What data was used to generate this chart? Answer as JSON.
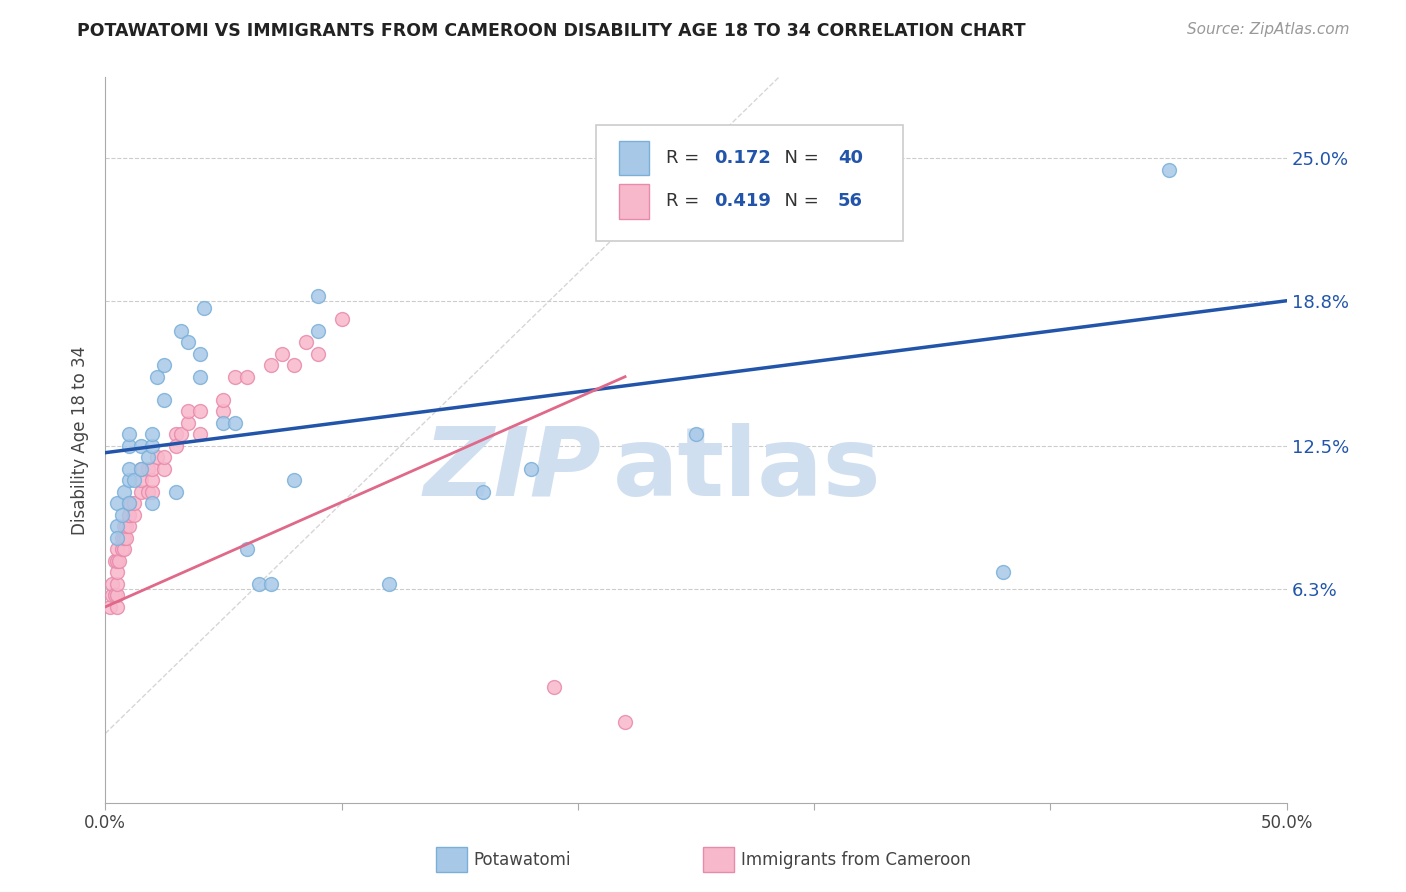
{
  "title": "POTAWATOMI VS IMMIGRANTS FROM CAMEROON DISABILITY AGE 18 TO 34 CORRELATION CHART",
  "source": "Source: ZipAtlas.com",
  "ylabel": "Disability Age 18 to 34",
  "xmin": 0.0,
  "xmax": 0.5,
  "ymin": -0.03,
  "ymax": 0.285,
  "yticks": [
    0.063,
    0.125,
    0.188,
    0.25
  ],
  "ytick_labels": [
    "6.3%",
    "12.5%",
    "18.8%",
    "25.0%"
  ],
  "xticks": [
    0.0,
    0.1,
    0.2,
    0.3,
    0.4,
    0.5
  ],
  "xtick_labels": [
    "0.0%",
    "",
    "",
    "",
    "",
    "50.0%"
  ],
  "blue_color": "#a8c8e8",
  "blue_edge": "#7ab0d8",
  "pink_color": "#f8b8cc",
  "pink_edge": "#e88aaa",
  "blue_line_color": "#2255aa",
  "pink_line_color": "#e06888",
  "watermark_color": "#d0dff0",
  "R_blue": 0.172,
  "N_blue": 40,
  "R_pink": 0.419,
  "N_pink": 56,
  "legend_label_blue": "Potawatomi",
  "legend_label_pink": "Immigrants from Cameroon",
  "blue_line_x0": 0.0,
  "blue_line_y0": 0.122,
  "blue_line_x1": 0.5,
  "blue_line_y1": 0.188,
  "pink_line_x0": 0.0,
  "pink_line_y0": 0.055,
  "pink_line_x1": 0.22,
  "pink_line_y1": 0.155,
  "blue_x": [
    0.005,
    0.005,
    0.005,
    0.007,
    0.008,
    0.01,
    0.01,
    0.01,
    0.01,
    0.01,
    0.012,
    0.015,
    0.015,
    0.018,
    0.02,
    0.02,
    0.02,
    0.022,
    0.025,
    0.025,
    0.03,
    0.032,
    0.035,
    0.04,
    0.04,
    0.042,
    0.05,
    0.055,
    0.06,
    0.065,
    0.07,
    0.08,
    0.09,
    0.09,
    0.12,
    0.16,
    0.18,
    0.25,
    0.38,
    0.45
  ],
  "blue_y": [
    0.09,
    0.1,
    0.085,
    0.095,
    0.105,
    0.1,
    0.11,
    0.115,
    0.125,
    0.13,
    0.11,
    0.115,
    0.125,
    0.12,
    0.1,
    0.125,
    0.13,
    0.155,
    0.145,
    0.16,
    0.105,
    0.175,
    0.17,
    0.155,
    0.165,
    0.185,
    0.135,
    0.135,
    0.08,
    0.065,
    0.065,
    0.11,
    0.175,
    0.19,
    0.065,
    0.105,
    0.115,
    0.13,
    0.07,
    0.245
  ],
  "pink_x": [
    0.002,
    0.003,
    0.003,
    0.004,
    0.004,
    0.005,
    0.005,
    0.005,
    0.005,
    0.005,
    0.005,
    0.006,
    0.007,
    0.007,
    0.008,
    0.008,
    0.008,
    0.009,
    0.009,
    0.01,
    0.01,
    0.01,
    0.01,
    0.01,
    0.012,
    0.012,
    0.015,
    0.015,
    0.015,
    0.018,
    0.018,
    0.02,
    0.02,
    0.02,
    0.022,
    0.025,
    0.025,
    0.03,
    0.03,
    0.032,
    0.035,
    0.035,
    0.04,
    0.04,
    0.05,
    0.05,
    0.055,
    0.06,
    0.07,
    0.075,
    0.08,
    0.085,
    0.09,
    0.1,
    0.19,
    0.22
  ],
  "pink_y": [
    0.055,
    0.06,
    0.065,
    0.06,
    0.075,
    0.055,
    0.06,
    0.065,
    0.07,
    0.075,
    0.08,
    0.075,
    0.08,
    0.085,
    0.08,
    0.085,
    0.09,
    0.085,
    0.09,
    0.09,
    0.095,
    0.1,
    0.095,
    0.1,
    0.095,
    0.1,
    0.105,
    0.11,
    0.115,
    0.105,
    0.115,
    0.105,
    0.11,
    0.115,
    0.12,
    0.115,
    0.12,
    0.13,
    0.125,
    0.13,
    0.135,
    0.14,
    0.13,
    0.14,
    0.14,
    0.145,
    0.155,
    0.155,
    0.16,
    0.165,
    0.16,
    0.17,
    0.165,
    0.18,
    0.02,
    0.005
  ]
}
